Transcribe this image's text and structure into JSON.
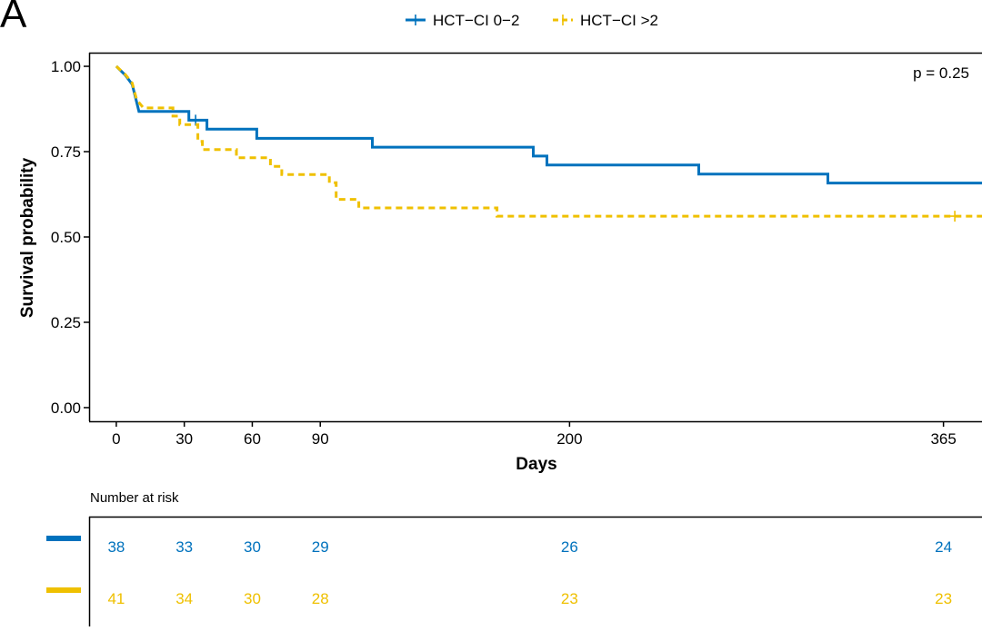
{
  "panel_label": "A",
  "chart_data": {
    "type": "line",
    "subtype": "kaplan-meier",
    "xlabel": "Days",
    "ylabel": "Survival probability",
    "xlim": [
      -12,
      382
    ],
    "ylim": [
      -0.04,
      1.04
    ],
    "x_ticks": [
      0,
      30,
      60,
      90,
      200,
      365
    ],
    "y_ticks": [
      0.0,
      0.25,
      0.5,
      0.75,
      1.0
    ],
    "y_tick_labels": [
      "0.00",
      "0.25",
      "0.50",
      "0.75",
      "1.00"
    ],
    "annotation": "p = 0.25",
    "legend_position": "top",
    "series": [
      {
        "name": "HCT−CI 0−2",
        "color": "#0072BD",
        "line_style": "solid",
        "steps": [
          [
            0,
            1.0
          ],
          [
            4,
            0.974
          ],
          [
            7,
            0.947
          ],
          [
            9,
            0.895
          ],
          [
            10,
            0.868
          ],
          [
            32,
            0.868
          ],
          [
            32,
            0.842
          ],
          [
            40,
            0.842
          ],
          [
            40,
            0.816
          ],
          [
            62,
            0.816
          ],
          [
            62,
            0.789
          ],
          [
            113,
            0.789
          ],
          [
            113,
            0.763
          ],
          [
            184,
            0.763
          ],
          [
            184,
            0.737
          ],
          [
            190,
            0.737
          ],
          [
            190,
            0.711
          ],
          [
            257,
            0.711
          ],
          [
            257,
            0.684
          ],
          [
            314,
            0.684
          ],
          [
            314,
            0.658
          ],
          [
            382,
            0.658
          ]
        ],
        "censor": [
          [
            35,
            0.842
          ]
        ]
      },
      {
        "name": "HCT−CI >2",
        "color": "#EFC000",
        "line_style": "dashed",
        "steps": [
          [
            0,
            1.0
          ],
          [
            4,
            0.976
          ],
          [
            7,
            0.951
          ],
          [
            9,
            0.902
          ],
          [
            12,
            0.878
          ],
          [
            25,
            0.878
          ],
          [
            25,
            0.854
          ],
          [
            28,
            0.854
          ],
          [
            28,
            0.829
          ],
          [
            36,
            0.829
          ],
          [
            36,
            0.78
          ],
          [
            38,
            0.78
          ],
          [
            38,
            0.756
          ],
          [
            53,
            0.756
          ],
          [
            53,
            0.732
          ],
          [
            68,
            0.732
          ],
          [
            68,
            0.707
          ],
          [
            73,
            0.707
          ],
          [
            73,
            0.683
          ],
          [
            94,
            0.683
          ],
          [
            94,
            0.659
          ],
          [
            97,
            0.659
          ],
          [
            97,
            0.61
          ],
          [
            107,
            0.61
          ],
          [
            107,
            0.585
          ],
          [
            168,
            0.585
          ],
          [
            168,
            0.561
          ],
          [
            382,
            0.561
          ]
        ],
        "censor": [
          [
            370,
            0.561
          ]
        ]
      }
    ]
  },
  "risk_table": {
    "title": "Number at risk",
    "times": [
      0,
      30,
      60,
      90,
      200,
      365
    ],
    "rows": [
      {
        "series": "HCT−CI 0−2",
        "color": "#0072BD",
        "values": [
          "38",
          "33",
          "30",
          "29",
          "26",
          "24"
        ]
      },
      {
        "series": "HCT−CI >2",
        "color": "#EFC000",
        "values": [
          "41",
          "34",
          "30",
          "28",
          "23",
          "23"
        ]
      }
    ]
  }
}
